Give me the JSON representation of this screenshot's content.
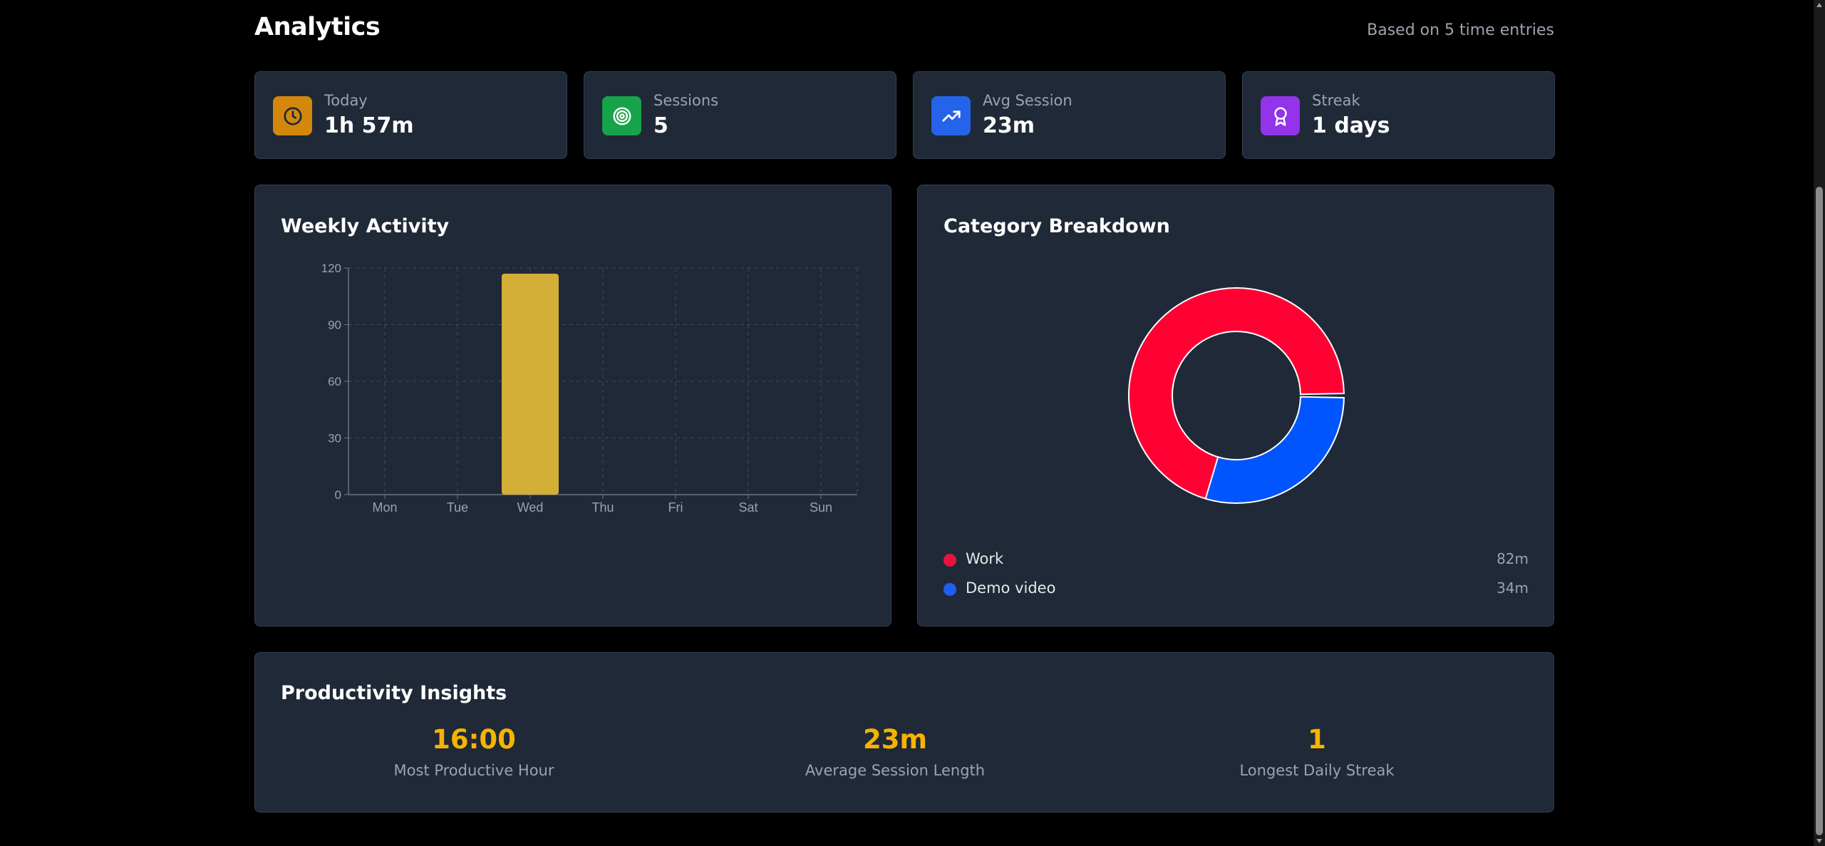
{
  "header": {
    "title": "Analytics",
    "subtitle": "Based on 5 time entries"
  },
  "stats": [
    {
      "label": "Today",
      "value": "1h 57m",
      "icon": "clock-icon",
      "color": "#d4880b"
    },
    {
      "label": "Sessions",
      "value": "5",
      "icon": "target-icon",
      "color": "#16a34a"
    },
    {
      "label": "Avg Session",
      "value": "23m",
      "icon": "trending-up-icon",
      "color": "#2563eb"
    },
    {
      "label": "Streak",
      "value": "1 days",
      "icon": "award-icon",
      "color": "#9333ea"
    }
  ],
  "weekly": {
    "title": "Weekly Activity",
    "chart_data": {
      "type": "bar",
      "categories": [
        "Mon",
        "Tue",
        "Wed",
        "Thu",
        "Fri",
        "Sat",
        "Sun"
      ],
      "values": [
        0,
        0,
        117,
        0,
        0,
        0,
        0
      ],
      "ylim": [
        0,
        120
      ],
      "yticks": [
        0,
        30,
        60,
        90,
        120
      ],
      "grid": true,
      "bar_color": "#d4af37"
    }
  },
  "category": {
    "title": "Category Breakdown",
    "chart_data": {
      "type": "pie",
      "labels": [
        "Work",
        "Demo video"
      ],
      "values": [
        82,
        34
      ],
      "colors": [
        "#ff0033",
        "#0055ff"
      ]
    },
    "legend": [
      {
        "name": "Work",
        "value": "82m",
        "color": "#ff0033"
      },
      {
        "name": "Demo video",
        "value": "34m",
        "color": "#0055ff"
      }
    ]
  },
  "insights": {
    "title": "Productivity Insights",
    "items": [
      {
        "value": "16:00",
        "label": "Most Productive Hour"
      },
      {
        "value": "23m",
        "label": "Average Session Length"
      },
      {
        "value": "1",
        "label": "Longest Daily Streak"
      }
    ],
    "accent": "#f5b400"
  }
}
